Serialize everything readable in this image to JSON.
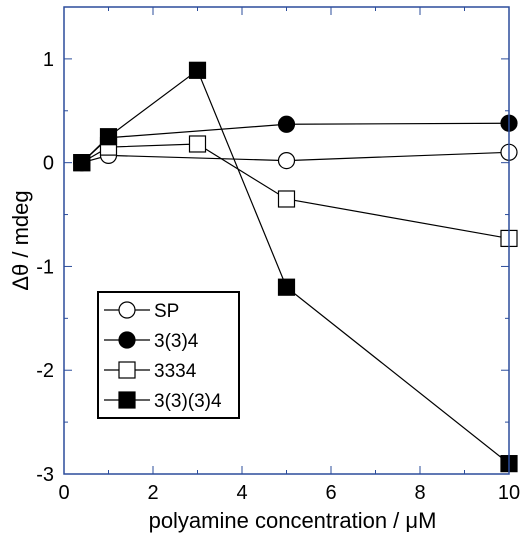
{
  "chart_data": {
    "type": "line",
    "title": "",
    "xlabel": "polyamine concentration / μM",
    "ylabel": "Δθ / mdeg",
    "xlim": [
      0,
      10
    ],
    "ylim": [
      -3,
      1.5
    ],
    "xticks": [
      "0",
      "2",
      "4",
      "6",
      "8",
      "10"
    ],
    "yticks": [
      "-3",
      "-2",
      "-1",
      "0",
      "1"
    ],
    "grid": false,
    "legend_position": "bottom-left",
    "colors": {
      "frame": "#2b4c9b",
      "ink": "#000000",
      "fill_open": "#ffffff"
    },
    "series": [
      {
        "name": "SP",
        "marker": "circle-open",
        "x": [
          0.4,
          1,
          5,
          10
        ],
        "y": [
          0.0,
          0.07,
          0.02,
          0.1
        ]
      },
      {
        "name": "3(3)4",
        "marker": "circle-filled",
        "x": [
          0.4,
          1,
          5,
          10
        ],
        "y": [
          0.0,
          0.24,
          0.37,
          0.38
        ]
      },
      {
        "name": "3334",
        "marker": "square-open",
        "x": [
          0.4,
          1,
          3,
          5,
          10
        ],
        "y": [
          0.0,
          0.15,
          0.18,
          -0.35,
          -0.73
        ]
      },
      {
        "name": "3(3)(3)4",
        "marker": "square-filled",
        "x": [
          0.4,
          1,
          3,
          5,
          10
        ],
        "y": [
          0.0,
          0.25,
          0.89,
          -1.2,
          -2.9
        ]
      }
    ]
  }
}
